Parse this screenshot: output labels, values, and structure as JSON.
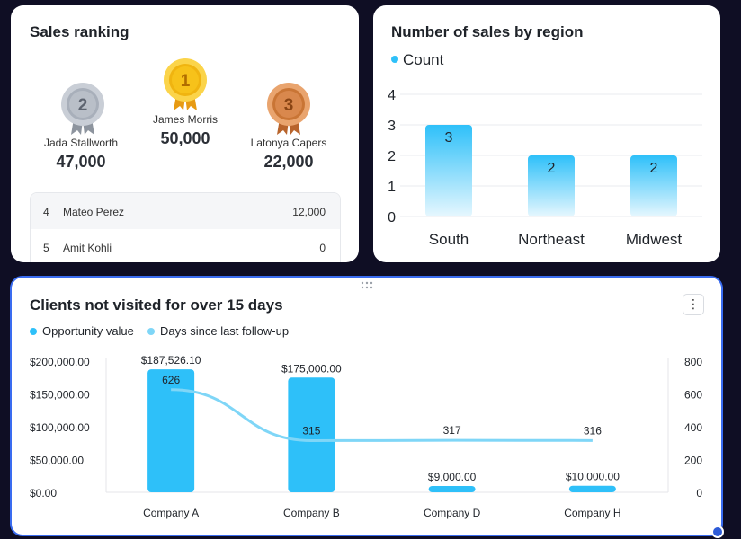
{
  "ranking": {
    "title": "Sales ranking",
    "podium": [
      {
        "rank": "2",
        "name": "Jada Stallworth",
        "value": "47,000"
      },
      {
        "rank": "1",
        "name": "James Morris",
        "value": "50,000"
      },
      {
        "rank": "3",
        "name": "Latonya Capers",
        "value": "22,000"
      }
    ],
    "rows": [
      {
        "rank": "4",
        "name": "Mateo Perez",
        "value": "12,000"
      },
      {
        "rank": "5",
        "name": "Amit Kohli",
        "value": "0"
      }
    ]
  },
  "region": {
    "title": "Number of sales by region",
    "legend": "Count"
  },
  "clients": {
    "title": "Clients not visited for over 15 days",
    "legend": [
      "Opportunity value",
      "Days since last follow-up"
    ],
    "more_icon": "⋮"
  },
  "colors": {
    "bar": "#2ec0f9",
    "line": "#7fd6f7",
    "gold": "#f7c21a",
    "silver": "#b9bfc8",
    "bronze": "#d9884d"
  },
  "chart_data": [
    {
      "type": "bar",
      "title": "Number of sales by region",
      "categories": [
        "South",
        "Northeast",
        "Midwest"
      ],
      "values": [
        3,
        2,
        2
      ],
      "value_labels": [
        "3",
        "2",
        "2"
      ],
      "yticks": [
        "4",
        "3",
        "2",
        "1",
        "0"
      ],
      "ylim": [
        0,
        4
      ],
      "legend": "Count"
    },
    {
      "type": "bar",
      "title": "Clients not visited for over 15 days",
      "categories": [
        "Company A",
        "Company B",
        "Company D",
        "Company H"
      ],
      "series": [
        {
          "name": "Opportunity value",
          "values": [
            187526.1,
            175000,
            9000,
            10000
          ],
          "labels": [
            "$187,526.10",
            "$175,000.00",
            "$9,000.00",
            "$10,000.00"
          ]
        },
        {
          "name": "Days since last follow-up",
          "type": "line",
          "values": [
            626,
            315,
            317,
            316
          ],
          "labels": [
            "626",
            "315",
            "317",
            "316"
          ]
        }
      ],
      "y_left_ticks": [
        "$200,000.00",
        "$150,000.00",
        "$100,000.00",
        "$50,000.00",
        "$0.00"
      ],
      "y_left_lim": [
        0,
        200000
      ],
      "y_right_ticks": [
        "800",
        "600",
        "400",
        "200",
        "0"
      ],
      "y_right_lim": [
        0,
        800
      ]
    }
  ]
}
